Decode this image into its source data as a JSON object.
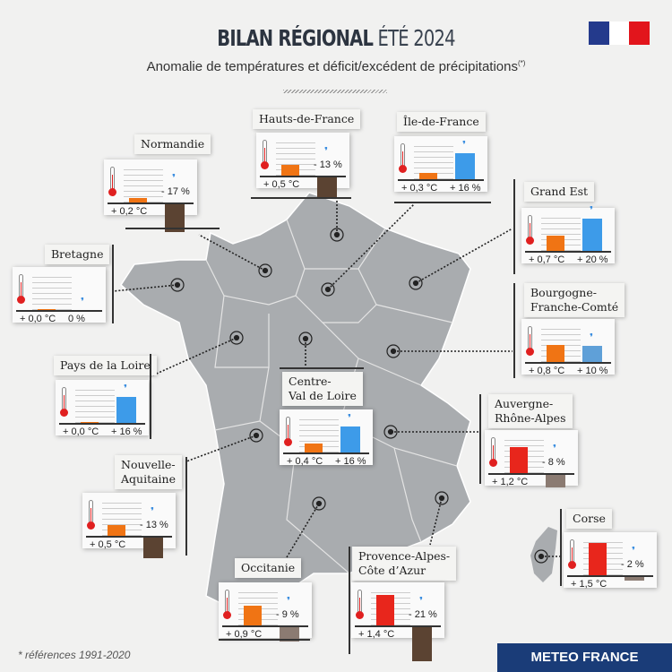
{
  "header": {
    "title_bold": "BILAN RÉGIONAL",
    "title_light": "ÉTÉ 2024",
    "subtitle": "Anomalie de températures et déficit/excédent de précipitations",
    "subtitle_sup": "(*)"
  },
  "colors": {
    "temp_low": "#f07414",
    "temp_high": "#e8261c",
    "precip_pos": "#3d9be9",
    "precip_pos_light": "#5fa0d8",
    "precip_neg": "#5b4332",
    "precip_neg_light": "#8b7b72",
    "map": "#a9acaf"
  },
  "regions": [
    {
      "name": "Normandie",
      "temp": 0.2,
      "temp_label": "+ 0,2 °C",
      "precip": -17,
      "precip_label": "- 17 %"
    },
    {
      "name": "Hauts-de-France",
      "temp": 0.5,
      "temp_label": "+ 0,5 °C",
      "precip": -13,
      "precip_label": "- 13 %"
    },
    {
      "name": "Île-de-France",
      "temp": 0.3,
      "temp_label": "+ 0,3 °C",
      "precip": 16,
      "precip_label": "+ 16 %"
    },
    {
      "name": "Grand Est",
      "temp": 0.7,
      "temp_label": "+ 0,7 °C",
      "precip": 20,
      "precip_label": "+ 20 %"
    },
    {
      "name": "Bretagne",
      "temp": 0.0,
      "temp_label": "+ 0,0 °C",
      "precip": 0,
      "precip_label": "0 %"
    },
    {
      "name": "Bourgogne-\nFranche-Comté",
      "temp": 0.8,
      "temp_label": "+ 0,8 °C",
      "precip": 10,
      "precip_label": "+ 10 %"
    },
    {
      "name": "Pays de la Loire",
      "temp": 0.0,
      "temp_label": "+ 0,0 °C",
      "precip": 16,
      "precip_label": "+ 16 %"
    },
    {
      "name": "Centre-\nVal de Loire",
      "temp": 0.4,
      "temp_label": "+ 0,4 °C",
      "precip": 16,
      "precip_label": "+ 16 %"
    },
    {
      "name": "Auvergne-\nRhône-Alpes",
      "temp": 1.2,
      "temp_label": "+ 1,2 °C",
      "precip": -8,
      "precip_label": "- 8 %"
    },
    {
      "name": "Nouvelle-\nAquitaine",
      "temp": 0.5,
      "temp_label": "+ 0,5 °C",
      "precip": -13,
      "precip_label": "- 13 %"
    },
    {
      "name": "Corse",
      "temp": 1.5,
      "temp_label": "+ 1,5 °C",
      "precip": -2,
      "precip_label": "- 2 %"
    },
    {
      "name": "Occitanie",
      "temp": 0.9,
      "temp_label": "+ 0,9 °C",
      "precip": -9,
      "precip_label": "- 9 %"
    },
    {
      "name": "Provence-Alpes-\nCôte d’Azur",
      "temp": 1.4,
      "temp_label": "+ 1,4 °C",
      "precip": -21,
      "precip_label": "- 21 %"
    }
  ],
  "footer": {
    "note": "* références 1991-2020",
    "brand": "METEO FRANCE"
  }
}
